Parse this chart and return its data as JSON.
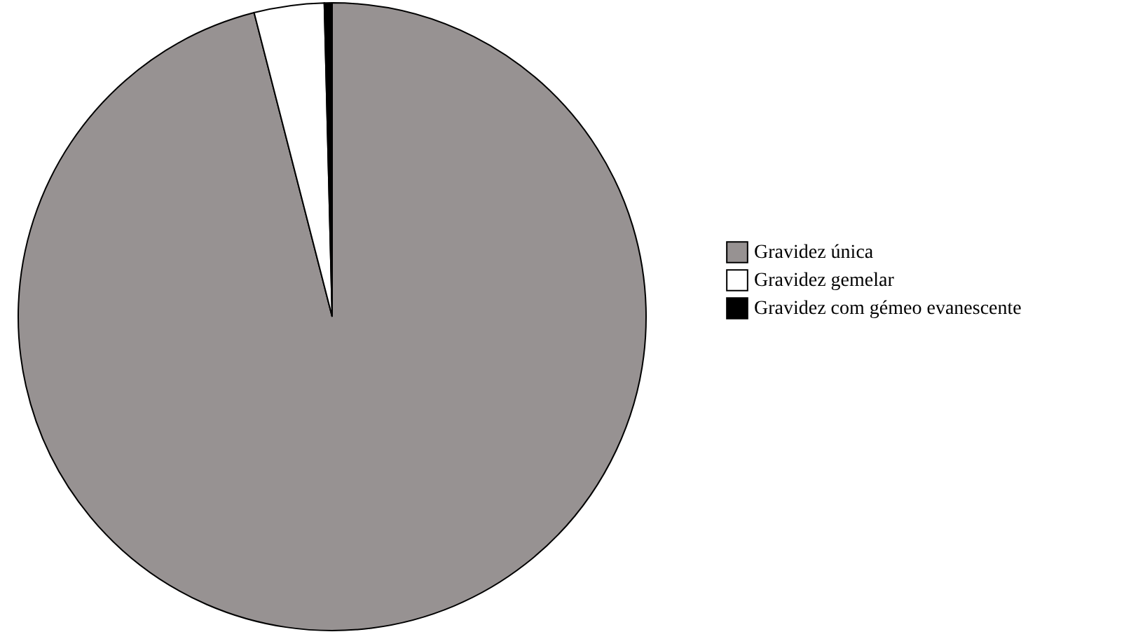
{
  "chart_data": {
    "type": "pie",
    "categories": [
      "Gravidez única",
      "Gravidez gemelar",
      "Gravidez com gémeo evanescente"
    ],
    "values": [
      96.0,
      3.6,
      0.4
    ],
    "colors": [
      "#979292",
      "#ffffff",
      "#000000"
    ],
    "legend": "right"
  }
}
